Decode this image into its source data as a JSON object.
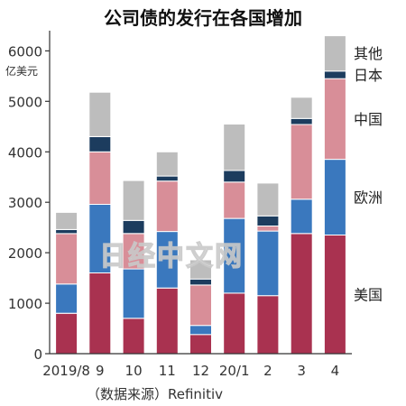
{
  "chart_data": {
    "type": "bar",
    "stacked": true,
    "title": "公司债的发行在各国增加",
    "unit_label": "亿美元",
    "categories": [
      "2019/8",
      "9",
      "10",
      "11",
      "12",
      "20/1",
      "2",
      "3",
      "4"
    ],
    "ylim": [
      0,
      6400
    ],
    "yticks": [
      0,
      1000,
      2000,
      3000,
      4000,
      5000,
      6000
    ],
    "grid": false,
    "legend": "right, labels beside last bar",
    "series": [
      {
        "name": "美国",
        "color": "#a93250",
        "values": [
          800,
          1600,
          700,
          1300,
          380,
          1200,
          1150,
          2380,
          2350
        ]
      },
      {
        "name": "欧洲",
        "color": "#3a78be",
        "values": [
          580,
          1360,
          980,
          1120,
          180,
          1480,
          1280,
          680,
          1500
        ]
      },
      {
        "name": "中国",
        "color": "#d88e98",
        "values": [
          1000,
          1040,
          700,
          1000,
          800,
          720,
          100,
          1480,
          1600
        ]
      },
      {
        "name": "日本",
        "color": "#1c3c5e",
        "values": [
          80,
          300,
          260,
          100,
          120,
          230,
          200,
          120,
          150
        ]
      },
      {
        "name": "其他",
        "color": "#bdbdbd",
        "values": [
          340,
          880,
          790,
          480,
          380,
          920,
          650,
          420,
          700
        ]
      }
    ],
    "source": "（数据来源）Refinitiv"
  },
  "watermark": "日经中文网",
  "colors": {
    "axis": "#333333",
    "bar_gap": "#ffffff"
  }
}
